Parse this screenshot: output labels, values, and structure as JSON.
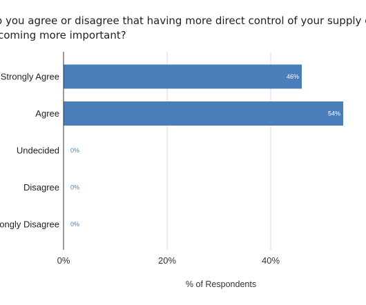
{
  "chart_data": {
    "type": "bar",
    "orientation": "horizontal",
    "title_lines": [
      "o you agree or disagree that having more direct control of your supply chain is",
      "coming more important?"
    ],
    "categories": [
      "Strongly Agree",
      "Agree",
      "Undecided",
      "Disagree",
      "ongly Disagree"
    ],
    "values": [
      46,
      54,
      0,
      0,
      0
    ],
    "data_labels": [
      "46%",
      "54%",
      "0%",
      "0%",
      "0%"
    ],
    "x_ticks": [
      0,
      20,
      40
    ],
    "x_tick_labels": [
      "0%",
      "20%",
      "40%"
    ],
    "xlabel": "% of Respondents",
    "ylabel": "",
    "xlim": [
      0,
      58
    ],
    "grid": "vertical",
    "legend": "none",
    "bar_color": "#4a7ebb",
    "grid_color": "#d9d9d9",
    "axis_color": "#333333"
  }
}
